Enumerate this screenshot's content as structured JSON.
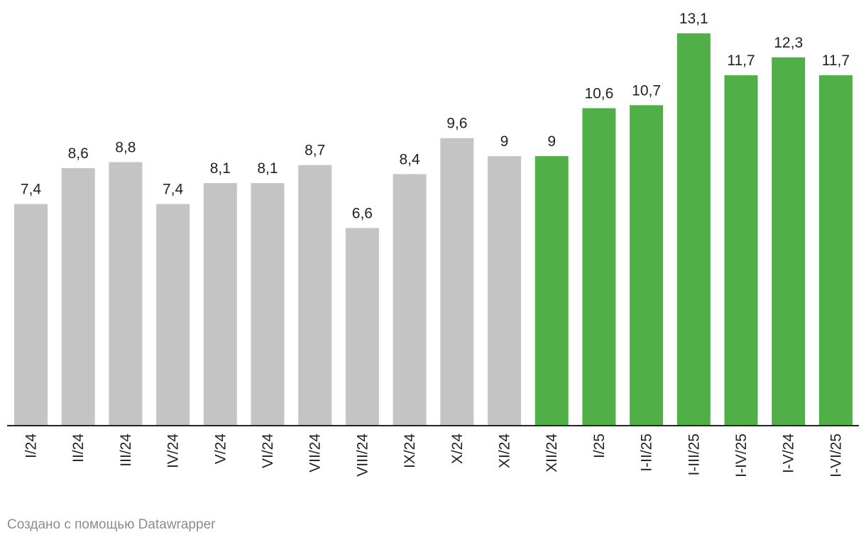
{
  "chart_data": {
    "type": "bar",
    "categories": [
      "I/24",
      "II/24",
      "III/24",
      "IV/24",
      "V/24",
      "VI/24",
      "VII/24",
      "VIII/24",
      "IX/24",
      "X/24",
      "XI/24",
      "XII/24",
      "I/25",
      "I-II/25",
      "I-III/25",
      "I-IV/25",
      "I-V/24",
      "I-VI/25"
    ],
    "values": [
      7.4,
      8.6,
      8.8,
      7.4,
      8.1,
      8.1,
      8.7,
      6.6,
      8.4,
      9.6,
      9,
      9,
      10.6,
      10.7,
      13.1,
      11.7,
      12.3,
      11.7
    ],
    "value_labels": [
      "7,4",
      "8,6",
      "8,8",
      "7,4",
      "8,1",
      "8,1",
      "8,7",
      "6,6",
      "8,4",
      "9,6",
      "9",
      "9",
      "10,6",
      "10,7",
      "13,1",
      "11,7",
      "12,3",
      "11,7"
    ],
    "highlight_from_index": 11,
    "colors": {
      "default": "#c4c4c4",
      "highlight": "#50af47",
      "axis": "#222222"
    },
    "ylim": [
      0,
      13.1
    ],
    "grid": false,
    "xlabel": "",
    "ylabel": "",
    "title": ""
  },
  "footer": {
    "credit": "Создано с помощью Datawrapper"
  }
}
